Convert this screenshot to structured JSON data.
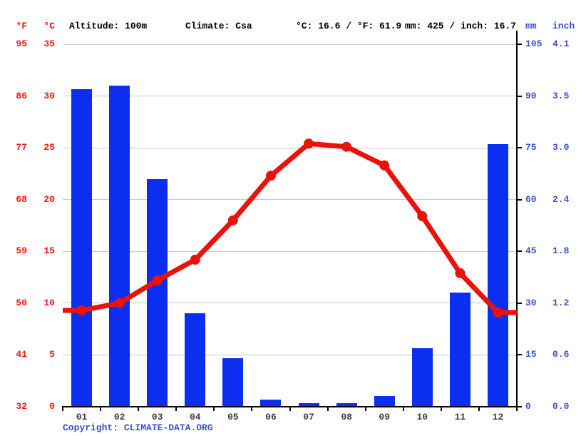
{
  "header": {
    "unit_f": "°F",
    "unit_c": "°C",
    "altitude": "Altitude: 100m",
    "climate": "Climate: Csa",
    "temperature_summary": "°C: 16.6 / °F: 61.9",
    "precipitation_summary": "mm: 425 / inch: 16.7",
    "unit_mm": "mm",
    "unit_inch": "inch"
  },
  "footer": {
    "copyright_label": "Copyright:",
    "link_text": "CLIMATE-DATA.ORG"
  },
  "colors": {
    "red_line": "#e8130a",
    "red_text": "#f2170c",
    "bar_blue": "#0c2ef0",
    "text_blue": "#3c50d8",
    "grid": "#c8c8c8",
    "month_label": "#3f3f3f"
  },
  "chart_data": {
    "type": "bar+line",
    "categories": [
      "01",
      "02",
      "03",
      "04",
      "05",
      "06",
      "07",
      "08",
      "09",
      "10",
      "11",
      "12"
    ],
    "series": [
      {
        "name": "Precipitation",
        "type": "bar",
        "unit": "mm",
        "axis": "right",
        "values": [
          92,
          93,
          66,
          27,
          14,
          2,
          1,
          1,
          3,
          17,
          33,
          76
        ]
      },
      {
        "name": "Temperature",
        "type": "line",
        "unit": "°C",
        "axis": "left",
        "values": [
          9.3,
          10.0,
          12.2,
          14.2,
          18.0,
          22.3,
          25.4,
          25.1,
          23.3,
          18.4,
          12.9,
          9.1
        ]
      }
    ],
    "axes": {
      "left_fahrenheit_ticks": [
        95,
        86,
        77,
        68,
        59,
        50,
        41,
        32
      ],
      "left_celsius_ticks": [
        35,
        30,
        25,
        20,
        15,
        10,
        5,
        0
      ],
      "right_mm_ticks": [
        105,
        90,
        75,
        60,
        45,
        30,
        15,
        0
      ],
      "right_inch_ticks": [
        "4.1",
        "3.5",
        "3.0",
        "2.4",
        "1.8",
        "1.2",
        "0.6",
        "0.0"
      ],
      "celsius_range": [
        0,
        35
      ],
      "mm_range": [
        0,
        105
      ]
    },
    "grid": true,
    "legend": "none"
  }
}
